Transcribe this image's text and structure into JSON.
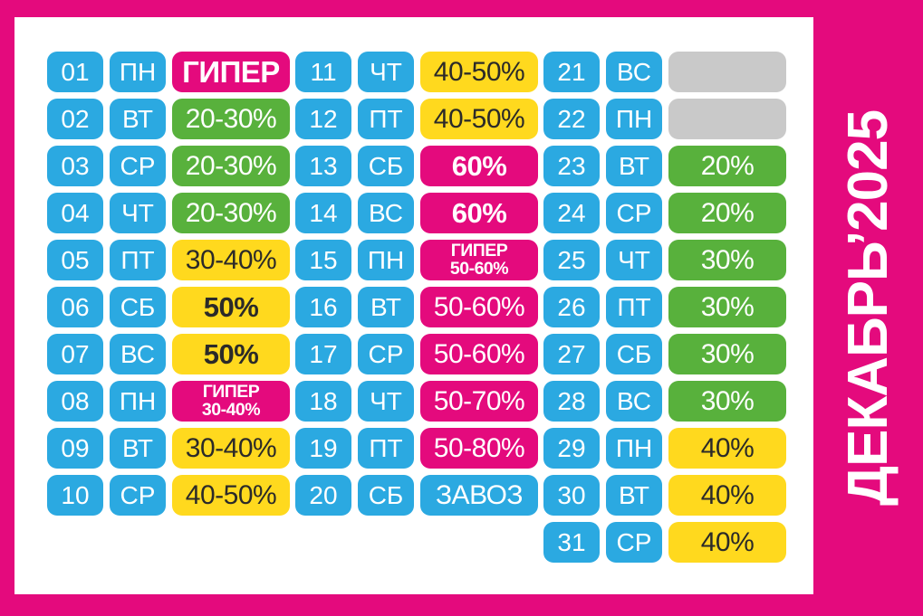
{
  "title": {
    "text": "ДЕКАБРЬ’2025"
  },
  "colors": {
    "magenta": "#E40A7D",
    "blue": "#2BA9E1",
    "green": "#58B13C",
    "yellow": "#FFD91E",
    "gray": "#C9C9C9",
    "dark": "#2B2A29",
    "panel": "#FFFFFF"
  },
  "days": [
    {
      "num": "01",
      "dow": "ПН",
      "lines": [
        "ГИПЕР"
      ],
      "color": "magenta",
      "bold": true,
      "large": true
    },
    {
      "num": "02",
      "dow": "ВТ",
      "lines": [
        "20-30%"
      ],
      "color": "green"
    },
    {
      "num": "03",
      "dow": "СР",
      "lines": [
        "20-30%"
      ],
      "color": "green"
    },
    {
      "num": "04",
      "dow": "ЧТ",
      "lines": [
        "20-30%"
      ],
      "color": "green"
    },
    {
      "num": "05",
      "dow": "ПТ",
      "lines": [
        "30-40%"
      ],
      "color": "yellow"
    },
    {
      "num": "06",
      "dow": "СБ",
      "lines": [
        "50%"
      ],
      "color": "yellow",
      "bold": true
    },
    {
      "num": "07",
      "dow": "ВС",
      "lines": [
        "50%"
      ],
      "color": "yellow",
      "bold": true
    },
    {
      "num": "08",
      "dow": "ПН",
      "lines": [
        "ГИПЕР",
        "30-40%"
      ],
      "color": "magenta",
      "bold": true
    },
    {
      "num": "09",
      "dow": "ВТ",
      "lines": [
        "30-40%"
      ],
      "color": "yellow"
    },
    {
      "num": "10",
      "dow": "СР",
      "lines": [
        "40-50%"
      ],
      "color": "yellow"
    },
    {
      "num": "11",
      "dow": "ЧТ",
      "lines": [
        "40-50%"
      ],
      "color": "yellow"
    },
    {
      "num": "12",
      "dow": "ПТ",
      "lines": [
        "40-50%"
      ],
      "color": "yellow"
    },
    {
      "num": "13",
      "dow": "СБ",
      "lines": [
        "60%"
      ],
      "color": "magenta",
      "bold": true
    },
    {
      "num": "14",
      "dow": "ВС",
      "lines": [
        "60%"
      ],
      "color": "magenta",
      "bold": true
    },
    {
      "num": "15",
      "dow": "ПН",
      "lines": [
        "ГИПЕР",
        "50-60%"
      ],
      "color": "magenta",
      "bold": true
    },
    {
      "num": "16",
      "dow": "ВТ",
      "lines": [
        "50-60%"
      ],
      "color": "magenta"
    },
    {
      "num": "17",
      "dow": "СР",
      "lines": [
        "50-60%"
      ],
      "color": "magenta"
    },
    {
      "num": "18",
      "dow": "ЧТ",
      "lines": [
        "50-70%"
      ],
      "color": "magenta"
    },
    {
      "num": "19",
      "dow": "ПТ",
      "lines": [
        "50-80%"
      ],
      "color": "magenta"
    },
    {
      "num": "20",
      "dow": "СБ",
      "lines": [
        "ЗАВОЗ"
      ],
      "color": "blue"
    },
    {
      "num": "21",
      "dow": "ВС",
      "lines": [],
      "color": "gray"
    },
    {
      "num": "22",
      "dow": "ПН",
      "lines": [],
      "color": "gray"
    },
    {
      "num": "23",
      "dow": "ВТ",
      "lines": [
        "20%"
      ],
      "color": "green"
    },
    {
      "num": "24",
      "dow": "СР",
      "lines": [
        "20%"
      ],
      "color": "green"
    },
    {
      "num": "25",
      "dow": "ЧТ",
      "lines": [
        "30%"
      ],
      "color": "green"
    },
    {
      "num": "26",
      "dow": "ПТ",
      "lines": [
        "30%"
      ],
      "color": "green"
    },
    {
      "num": "27",
      "dow": "СБ",
      "lines": [
        "30%"
      ],
      "color": "green"
    },
    {
      "num": "28",
      "dow": "ВС",
      "lines": [
        "30%"
      ],
      "color": "green"
    },
    {
      "num": "29",
      "dow": "ПН",
      "lines": [
        "40%"
      ],
      "color": "yellow"
    },
    {
      "num": "30",
      "dow": "ВТ",
      "lines": [
        "40%"
      ],
      "color": "yellow"
    },
    {
      "num": "31",
      "dow": "СР",
      "lines": [
        "40%"
      ],
      "color": "yellow"
    }
  ],
  "column_ranges": [
    [
      0,
      10
    ],
    [
      10,
      20
    ],
    [
      20,
      31
    ]
  ]
}
